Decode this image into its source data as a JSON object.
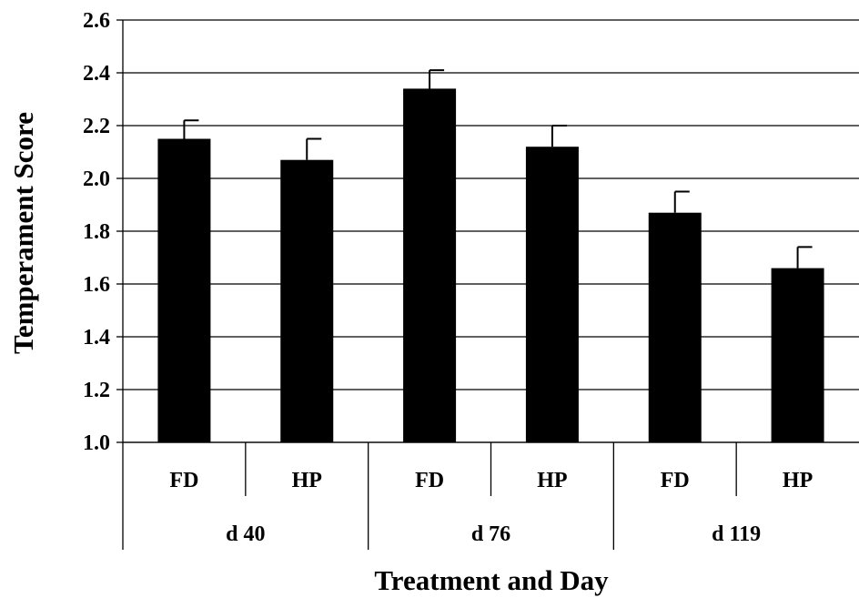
{
  "chart_data": {
    "type": "bar",
    "title": "",
    "xlabel": "Treatment and Day",
    "ylabel": "Temperament Score",
    "ylim": [
      1.0,
      2.6
    ],
    "yticks": [
      "1.0",
      "1.2",
      "1.4",
      "1.6",
      "1.8",
      "2.0",
      "2.2",
      "2.4",
      "2.6"
    ],
    "grid": true,
    "categories": [
      "FD",
      "HP",
      "FD",
      "HP",
      "FD",
      "HP"
    ],
    "groups": [
      "d 40",
      "d 76",
      "d 119"
    ],
    "values": [
      2.15,
      2.07,
      2.34,
      2.12,
      1.87,
      1.66
    ],
    "errors": [
      0.07,
      0.08,
      0.07,
      0.08,
      0.08,
      0.08
    ],
    "bar_color": "#000000"
  }
}
